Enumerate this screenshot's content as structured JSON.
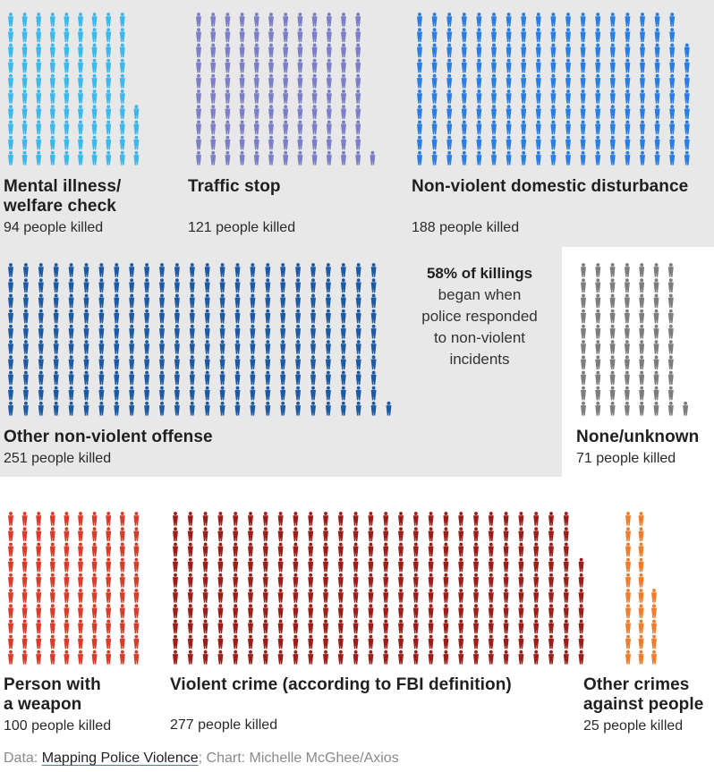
{
  "chart_data": {
    "type": "pictogram",
    "unit": "one figure = one person killed",
    "categories": [
      {
        "key": "mental",
        "label": "Mental illness/ welfare check",
        "label_lines": [
          "Mental illness/",
          "welfare check"
        ],
        "count_text": "94 people killed",
        "value": 94,
        "color": "#3cb8ea"
      },
      {
        "key": "traffic",
        "label": "Traffic stop",
        "label_lines": [
          "Traffic stop"
        ],
        "count_text": "121 people killed",
        "value": 121,
        "color": "#7b7fc6"
      },
      {
        "key": "domestic",
        "label": "Non-violent domestic disturbance",
        "label_lines": [
          "Non-violent domestic disturbance"
        ],
        "count_text": "188 people killed",
        "value": 188,
        "color": "#2a7de1"
      },
      {
        "key": "nonviolent",
        "label": "Other non-violent offense",
        "label_lines": [
          "Other non-violent offense"
        ],
        "count_text": "251 people killed",
        "value": 251,
        "color": "#1e5aa3"
      },
      {
        "key": "unknown",
        "label": "None/unknown",
        "label_lines": [
          "None/unknown"
        ],
        "count_text": "71 people killed",
        "value": 71,
        "color": "#7d7d7d"
      },
      {
        "key": "weapon",
        "label": "Person with a weapon",
        "label_lines": [
          "Person with",
          "a weapon"
        ],
        "count_text": "100 people killed",
        "value": 100,
        "color": "#d83d2c"
      },
      {
        "key": "violent",
        "label": "Violent crime (according to FBI definition)",
        "label_lines": [
          "Violent crime (according to FBI definition)"
        ],
        "count_text": "277 people killed",
        "value": 277,
        "color": "#9c1e19"
      },
      {
        "key": "other",
        "label": "Other crimes against people",
        "label_lines": [
          "Other crimes",
          "against people"
        ],
        "count_text": "25 people killed",
        "value": 25,
        "color": "#ef7d2b"
      }
    ],
    "annotation": {
      "bold": "58% of killings",
      "lines": [
        "began when",
        "police responded",
        "to non-violent",
        "incidents"
      ]
    }
  },
  "footer": {
    "data_prefix": "Data: ",
    "source_link": "Mapping Police Violence",
    "credit": "; Chart: Michelle McGhee/Axios"
  }
}
